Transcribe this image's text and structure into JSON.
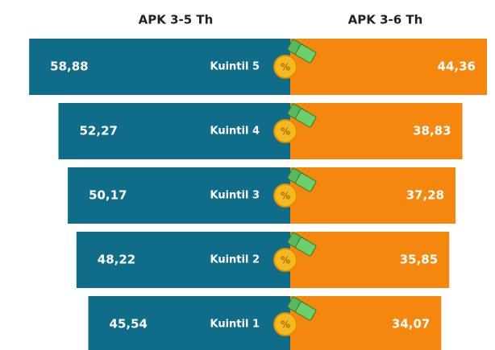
{
  "chart_data": {
    "type": "butterfly",
    "categories": [
      "Kuintil 5",
      "Kuintil 4",
      "Kuintil 3",
      "Kuintil 2",
      "Kuintil 1"
    ],
    "series": [
      {
        "name": "APK 3-5 Th",
        "color": "#0f6d89",
        "values": [
          58.88,
          52.27,
          50.17,
          48.22,
          45.54
        ],
        "value_labels": [
          "58,88",
          "52,27",
          "50,17",
          "48,22",
          "45,54"
        ]
      },
      {
        "name": "APK 3-6 Th",
        "color": "#f5870f",
        "values": [
          44.36,
          38.83,
          37.28,
          35.85,
          34.07
        ],
        "value_labels": [
          "44,36",
          "38,83",
          "37,28",
          "35,85",
          "34,07"
        ]
      }
    ]
  }
}
